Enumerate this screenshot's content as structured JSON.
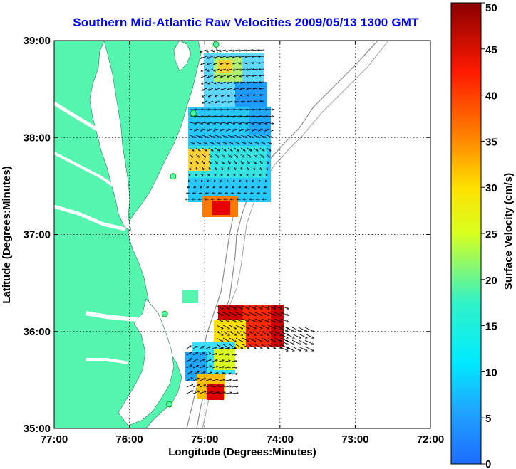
{
  "title": "Southern Mid-Atlantic Raw Velocities 2009/05/13 1300 GMT",
  "map": {
    "xlabel": "Longitude (Degrees:Minutes)",
    "ylabel": "Latitude (Degrees:Minutes)",
    "lon_range": [
      -77,
      -72
    ],
    "lat_range": [
      35,
      39
    ],
    "x_ticks": [
      {
        "value": -77,
        "label": "77:00"
      },
      {
        "value": -76,
        "label": "76:00"
      },
      {
        "value": -75,
        "label": "75:00"
      },
      {
        "value": -74,
        "label": "74:00"
      },
      {
        "value": -73,
        "label": "73:00"
      },
      {
        "value": -72,
        "label": "72:00"
      }
    ],
    "y_ticks": [
      {
        "value": 35,
        "label": "35:00"
      },
      {
        "value": 36,
        "label": "36:00"
      },
      {
        "value": 37,
        "label": "37:00"
      },
      {
        "value": 38,
        "label": "38:00"
      },
      {
        "value": 39,
        "label": "39:00"
      }
    ],
    "grid": true,
    "land_color": "#55f5b0",
    "stations": [
      {
        "lon": -74.85,
        "lat": 38.96
      },
      {
        "lon": -75.15,
        "lat": 38.25
      },
      {
        "lon": -75.42,
        "lat": 37.6
      },
      {
        "lon": -75.53,
        "lat": 36.18
      },
      {
        "lon": -75.47,
        "lat": 35.25
      }
    ]
  },
  "colorbar": {
    "label": "Surface Velocity (cm/s)",
    "range": [
      0,
      50
    ],
    "ticks": [
      {
        "value": 0,
        "label": "0"
      },
      {
        "value": 5,
        "label": "5"
      },
      {
        "value": 10,
        "label": "10"
      },
      {
        "value": 15,
        "label": "15"
      },
      {
        "value": 20,
        "label": "20"
      },
      {
        "value": 25,
        "label": "25"
      },
      {
        "value": 30,
        "label": "30"
      },
      {
        "value": 35,
        "label": "35"
      },
      {
        "value": 40,
        "label": "40"
      },
      {
        "value": 45,
        "label": "45"
      },
      {
        "value": 50,
        "label": "50"
      }
    ]
  }
}
